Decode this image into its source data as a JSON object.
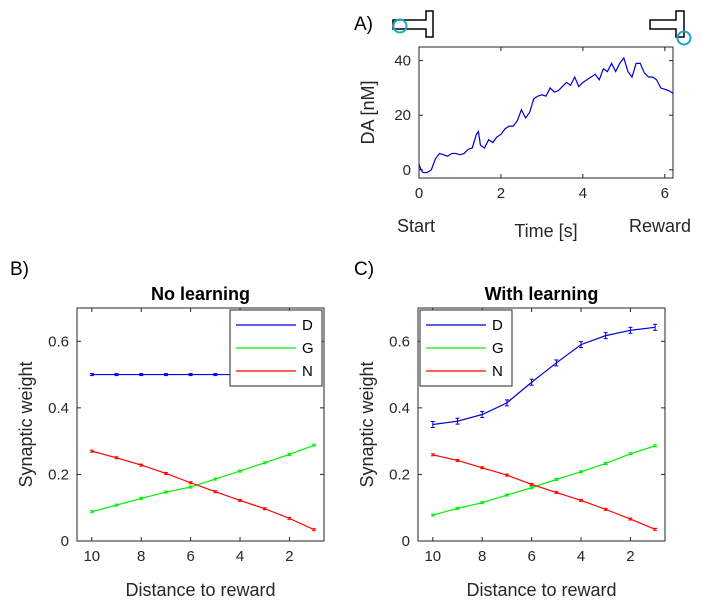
{
  "chart_data": [
    {
      "panel_label": "A)",
      "type": "line",
      "xlabel": "Time [s]",
      "ylabel": "DA [nM]",
      "xlim": [
        0,
        6.2
      ],
      "ylim": [
        -3,
        45
      ],
      "xticks": [
        0,
        2,
        4,
        6
      ],
      "yticks": [
        0,
        20,
        40
      ],
      "x_annotations": {
        "start": "Start",
        "end": "Reward"
      },
      "color": "#0000cc",
      "x": [
        0,
        0.05,
        0.1,
        0.2,
        0.3,
        0.4,
        0.5,
        0.6,
        0.7,
        0.8,
        0.9,
        1.0,
        1.1,
        1.2,
        1.3,
        1.4,
        1.45,
        1.5,
        1.6,
        1.7,
        1.8,
        1.9,
        2.0,
        2.1,
        2.2,
        2.3,
        2.4,
        2.5,
        2.6,
        2.7,
        2.8,
        2.9,
        3.0,
        3.1,
        3.2,
        3.3,
        3.4,
        3.5,
        3.6,
        3.7,
        3.8,
        3.9,
        4.0,
        4.1,
        4.2,
        4.3,
        4.4,
        4.5,
        4.6,
        4.7,
        4.8,
        4.9,
        5.0,
        5.1,
        5.2,
        5.3,
        5.4,
        5.5,
        5.6,
        5.7,
        5.8,
        5.9,
        6.0,
        6.1,
        6.2
      ],
      "y": [
        2,
        0,
        -1,
        -1,
        0,
        4,
        6,
        5.5,
        5,
        6,
        6,
        5.5,
        6,
        7.5,
        8,
        13,
        14,
        9,
        8,
        11,
        10,
        12,
        13,
        15,
        16,
        16,
        18,
        22,
        19,
        21,
        26,
        27,
        27.5,
        27,
        30,
        28.5,
        29,
        30.5,
        32,
        31,
        34,
        30.5,
        32,
        33,
        34,
        35,
        33,
        37,
        36,
        39,
        36,
        39,
        41,
        36,
        34,
        39,
        39,
        35.5,
        34,
        34,
        33,
        30,
        29.5,
        29,
        28
      ],
      "inset_icons": [
        "start-position-maze-icon",
        "reward-position-maze-icon"
      ]
    },
    {
      "panel_label": "B)",
      "type": "line",
      "title": "No learning",
      "xlabel": "Distance to reward",
      "ylabel": "Synaptic weight",
      "x_reversed": true,
      "xlim": [
        10.6,
        0.6
      ],
      "ylim": [
        0,
        0.7
      ],
      "xticks": [
        10,
        8,
        6,
        4,
        2
      ],
      "yticks": [
        0,
        0.2,
        0.4,
        0.6
      ],
      "x": [
        10,
        9,
        8,
        7,
        6,
        5,
        4,
        3,
        2,
        1
      ],
      "legend": {
        "position": "top-right"
      },
      "series": [
        {
          "name": "D",
          "color": "#0000ff",
          "values": [
            0.5,
            0.5,
            0.5,
            0.5,
            0.5,
            0.5,
            0.5,
            0.5,
            0.5,
            0.5
          ]
        },
        {
          "name": "G",
          "color": "#00ee00",
          "values": [
            0.088,
            0.108,
            0.128,
            0.147,
            0.162,
            0.186,
            0.21,
            0.235,
            0.26,
            0.288
          ]
        },
        {
          "name": "N",
          "color": "#ff0000",
          "values": [
            0.27,
            0.25,
            0.228,
            0.203,
            0.175,
            0.148,
            0.122,
            0.097,
            0.068,
            0.034
          ]
        }
      ]
    },
    {
      "panel_label": "C)",
      "type": "line",
      "title": "With learning",
      "xlabel": "Distance to reward",
      "ylabel": "Synaptic weight",
      "x_reversed": true,
      "xlim": [
        10.6,
        0.6
      ],
      "ylim": [
        0,
        0.7
      ],
      "xticks": [
        10,
        8,
        6,
        4,
        2
      ],
      "yticks": [
        0,
        0.2,
        0.4,
        0.6
      ],
      "x": [
        10,
        9,
        8,
        7,
        6,
        5,
        4,
        3,
        2,
        1
      ],
      "legend": {
        "position": "top-left"
      },
      "series": [
        {
          "name": "D",
          "color": "#0000cc",
          "values": [
            0.35,
            0.36,
            0.38,
            0.415,
            0.477,
            0.535,
            0.59,
            0.617,
            0.633,
            0.642
          ]
        },
        {
          "name": "G",
          "color": "#00ee00",
          "values": [
            0.078,
            0.098,
            0.115,
            0.138,
            0.16,
            0.185,
            0.208,
            0.233,
            0.262,
            0.286
          ]
        },
        {
          "name": "N",
          "color": "#ff0000",
          "values": [
            0.259,
            0.242,
            0.22,
            0.198,
            0.17,
            0.146,
            0.122,
            0.095,
            0.066,
            0.035
          ]
        }
      ]
    }
  ]
}
